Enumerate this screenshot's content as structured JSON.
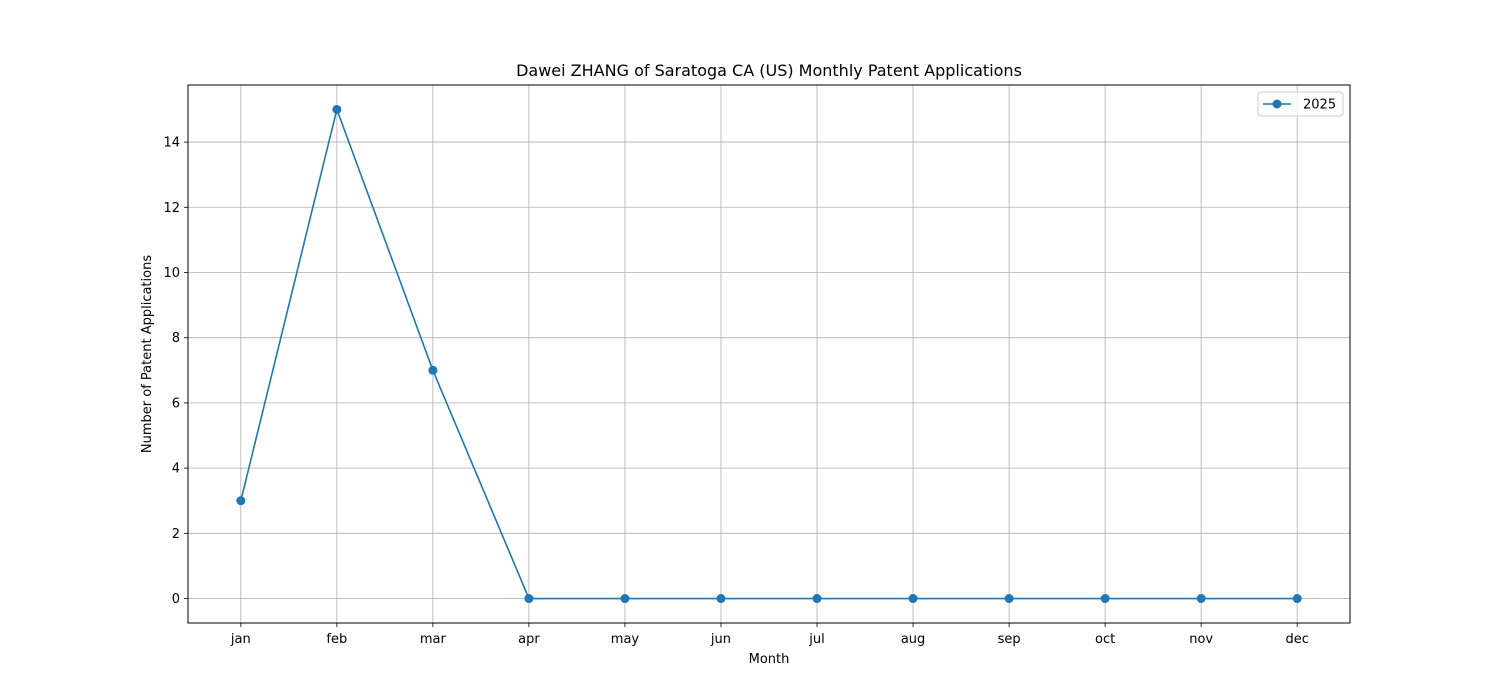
{
  "chart_data": {
    "type": "line",
    "title": "Dawei ZHANG of Saratoga CA (US) Monthly Patent Applications",
    "xlabel": "Month",
    "ylabel": "Number of Patent Applications",
    "categories": [
      "jan",
      "feb",
      "mar",
      "apr",
      "may",
      "jun",
      "jul",
      "aug",
      "sep",
      "oct",
      "nov",
      "dec"
    ],
    "series": [
      {
        "name": "2025",
        "values": [
          3,
          15,
          7,
          0,
          0,
          0,
          0,
          0,
          0,
          0,
          0,
          0
        ],
        "color": "#1f77b4",
        "marker": "circle"
      }
    ],
    "ylim": [
      -0.75,
      15.75
    ],
    "yticks": [
      0,
      2,
      4,
      6,
      8,
      10,
      12,
      14
    ],
    "grid": true,
    "legend_position": "top-right"
  }
}
